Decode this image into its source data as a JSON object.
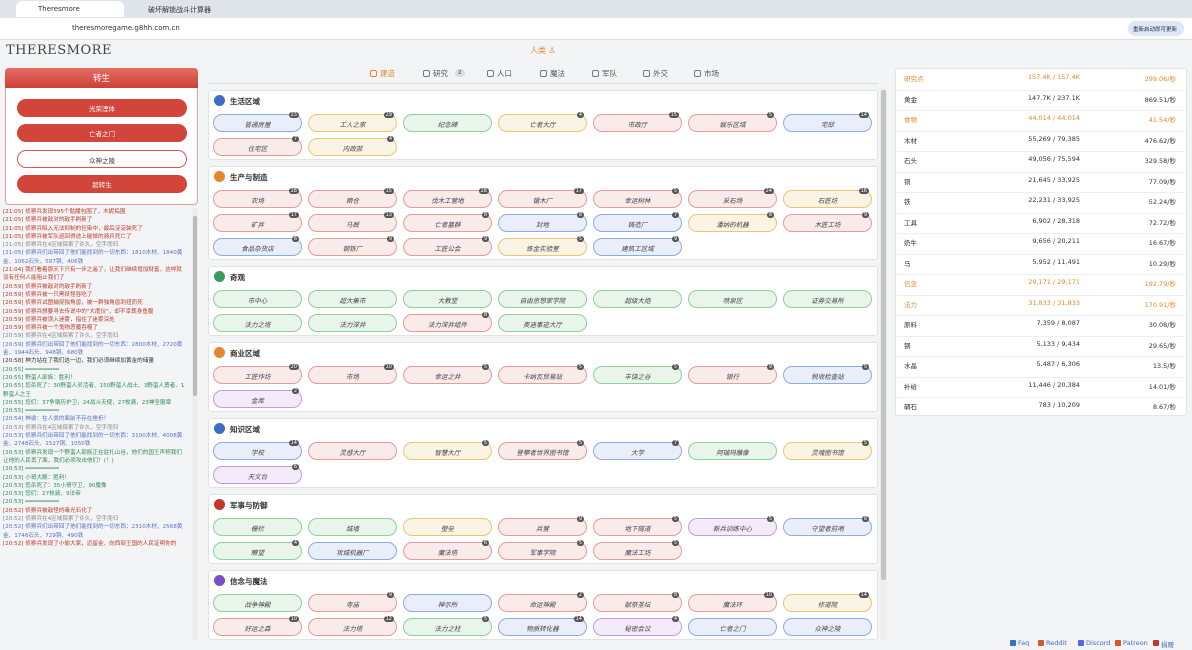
{
  "browser": {
    "tabs": [
      "Theresmore",
      "破坏解锁战斗计算器"
    ],
    "url": "theresmoregame.g8hh.com.cn",
    "update_button": "重新启动即可更新"
  },
  "header": {
    "logo": "THERESMORE",
    "race": "人类 ♙"
  },
  "rebirth": {
    "title": "转生",
    "buttons": [
      {
        "label": "光荣湮体"
      },
      {
        "label": "亡者之门"
      },
      {
        "label": "众神之陵",
        "progress": 16
      },
      {
        "label": "超转生"
      }
    ]
  },
  "log": [
    {
      "text": "[21:05] 侦察兵发现595个骷髅包围了，木妮捣围",
      "color": "#c0392b"
    },
    {
      "text": "[21:05] 侦察兵被敌对的敌手刷新了",
      "color": "#c0392b"
    },
    {
      "text": "[21:05] 侦察兵陷入无法抑制的狂染中，最后淀淀装死了",
      "color": "#c0392b"
    },
    {
      "text": "[21:05] 侦察兵被军队巡回得途上碰掉的骑兵死亡了",
      "color": "#c0392b"
    },
    {
      "text": "[21:05] 侦察兵在4区域探索了许久，空手而归",
      "color": "#888"
    },
    {
      "text": "[21:05] 侦察兵们出带回了他们能找到的一切东西：1810木材、1840黄金、1062石头、597铜、406铁",
      "color": "#5b6fc7"
    },
    {
      "text": "[21:04] 我们看着那天下只有一步之遥了，让我们继续增加财富，这样就没有任何人能阻止我们了",
      "color": "#c0392b"
    },
    {
      "text": "[20:59] 侦察兵被敌对的敌手刷新了",
      "color": "#c0392b"
    },
    {
      "text": "[20:59] 侦察兵被一只黑妖怪吞吃了",
      "color": "#c0392b"
    },
    {
      "text": "[20:59] 侦察兵试图捕捉独角兽，被一群独角兽刺扭而死",
      "color": "#c0392b"
    },
    {
      "text": "[20:59] 侦察兵想要寻去传说中的\"大度仪\"，却不幸葬身鱼腹",
      "color": "#c0392b"
    },
    {
      "text": "[20:59] 侦察兵被误入迷雾，指往了迷雾深处",
      "color": "#c0392b"
    },
    {
      "text": "[20:59] 侦察兵被一个鬼物恶魔吞噬了",
      "color": "#c0392b"
    },
    {
      "text": "[20:59] 侦察兵在4区域探索了许久，空手而归",
      "color": "#888"
    },
    {
      "text": "[20:59] 侦察兵们出带回了他们能找到的一切东西：2800木材、2720黄金、1944石头、948铜、680铁",
      "color": "#5b6fc7"
    },
    {
      "text": "[20:58] 神力站在了我们这一边，我们必须继续加黄金的储量",
      "color": "#333"
    },
    {
      "text": "[20:55] ━━━━━━━━━━",
      "color": "#2e8b57"
    },
    {
      "text": "[20:55] 野蛮人部族：胜利！",
      "color": "#2e8b57"
    },
    {
      "text": "[20:55] 您杀死了：30野蛮人灵活者、150野蛮人战士、3野蛮人勇者、1野蛮人之王",
      "color": "#2e8b57"
    },
    {
      "text": "[20:55] 您们：37争钢历护卫，24战斗天使，27枚骑，23神圣服章",
      "color": "#2e8b57"
    },
    {
      "text": "[20:55] ━━━━━━━━━━",
      "color": "#2e8b57"
    },
    {
      "text": "[20:54] 神谕：在人类的面前不存在挫折！",
      "color": "#5b6fc7"
    },
    {
      "text": "[20:53] 侦察兵在4区域探索了许久，空手而归",
      "color": "#888"
    },
    {
      "text": "[20:53] 侦察兵们出带回了他们能找到的一切东西：3100木材、4008黄金、2748石头、1527铜、1050铁",
      "color": "#5b6fc7"
    },
    {
      "text": "[20:53] 侦察兵发现一个野蛮人部族正在驻扎山谷，他们的国王声称我们让他的人民丢了面，我们必须攻击他们！(！)",
      "color": "#2e8b57"
    },
    {
      "text": "[20:53] ━━━━━━━━━━",
      "color": "#2e8b57"
    },
    {
      "text": "[20:53] 小哥大殿：胜利！",
      "color": "#2e8b57"
    },
    {
      "text": "[20:53] 您杀死了：35小哥守卫、90魔像",
      "color": "#2e8b57"
    },
    {
      "text": "[20:53] 您们：27枚骑，9法帝",
      "color": "#2e8b57"
    },
    {
      "text": "[20:53] ━━━━━━━━━━",
      "color": "#2e8b57"
    },
    {
      "text": "[20:52] 侦察兵被敌怪的毒光石化了",
      "color": "#c0392b"
    },
    {
      "text": "[20:52] 侦察兵在4区域探索了许久，空手而归",
      "color": "#888"
    },
    {
      "text": "[20:52] 侦察兵们出带回了他们能找到的一切东西：2310木材、2568黄金、1746石头、729铜、490铁",
      "color": "#5b6fc7"
    },
    {
      "text": "[20:52] 侦察兵发现了小偷大家，迈留金、向西部王国的人民证明你的",
      "color": "#c0392b"
    }
  ],
  "tabs": [
    {
      "label": "建造"
    },
    {
      "label": "研究",
      "badge": 2
    },
    {
      "label": "人口"
    },
    {
      "label": "魔法"
    },
    {
      "label": "军队"
    },
    {
      "label": "外交"
    },
    {
      "label": "市场"
    }
  ],
  "sections": [
    {
      "title": "生活区域",
      "icon_color": "#3d6fc4",
      "buildings": [
        {
          "name": "普通房屋",
          "count": 23,
          "color": "#8fa8e6"
        },
        {
          "name": "工人之家",
          "count": 29,
          "color": "#e6c777"
        },
        {
          "name": "纪念碑",
          "color": "#8fcf9b"
        },
        {
          "name": "亡者大厅",
          "count": 4,
          "color": "#e6c777"
        },
        {
          "name": "市政厅",
          "count": 15,
          "color": "#e79a9a"
        },
        {
          "name": "娱乐区域",
          "count": 5,
          "color": "#e79a9a"
        },
        {
          "name": "宅邸",
          "count": 14,
          "color": "#8fa8e6"
        },
        {
          "name": "住宅区",
          "count": 7,
          "color": "#e79a9a"
        },
        {
          "name": "内政部",
          "count": 4,
          "color": "#e6c777"
        }
      ]
    },
    {
      "title": "生产与制造",
      "icon_color": "#e0892c",
      "buildings": [
        {
          "name": "农场",
          "count": 28,
          "color": "#e79a9a"
        },
        {
          "name": "粮仓",
          "count": 15,
          "color": "#e79a9a"
        },
        {
          "name": "伐木工营地",
          "count": 28,
          "color": "#e79a9a"
        },
        {
          "name": "锯木厂",
          "count": 17,
          "color": "#e79a9a"
        },
        {
          "name": "幸运树林",
          "count": 5,
          "color": "#e79a9a"
        },
        {
          "name": "采石场",
          "count": 24,
          "color": "#e79a9a"
        },
        {
          "name": "石匠坊",
          "count": 16,
          "color": "#e6c777"
        },
        {
          "name": "矿井",
          "count": 17,
          "color": "#e79a9a"
        },
        {
          "name": "马厩",
          "count": 13,
          "color": "#e79a9a"
        },
        {
          "name": "亡者墓群",
          "count": 8,
          "color": "#e79a9a"
        },
        {
          "name": "封地",
          "count": 8,
          "color": "#8fa8e6"
        },
        {
          "name": "铸造厂",
          "count": 7,
          "color": "#8fa8e6"
        },
        {
          "name": "潘纳的机器",
          "count": 8,
          "color": "#e6c777"
        },
        {
          "name": "木匠工坊",
          "count": 9,
          "color": "#e79a9a"
        },
        {
          "name": "食品杂货店",
          "count": 6,
          "color": "#8fa8e6"
        },
        {
          "name": "钢铁厂",
          "count": 9,
          "color": "#e79a9a"
        },
        {
          "name": "工匠公会",
          "count": 9,
          "color": "#e79a9a"
        },
        {
          "name": "炼金实验室",
          "count": 5,
          "color": "#e6c777"
        },
        {
          "name": "建筑工区域",
          "count": 9,
          "color": "#8fa8e6"
        }
      ]
    },
    {
      "title": "奇观",
      "icon_color": "#3a9a5b",
      "buildings": [
        {
          "name": "市中心",
          "color": "#8fcf9b"
        },
        {
          "name": "超大集市",
          "color": "#8fcf9b"
        },
        {
          "name": "大教堂",
          "color": "#8fcf9b"
        },
        {
          "name": "自由思想家学院",
          "color": "#8fcf9b"
        },
        {
          "name": "超级大炮",
          "color": "#8fcf9b"
        },
        {
          "name": "喷泉区",
          "color": "#8fcf9b"
        },
        {
          "name": "证券交易所",
          "color": "#8fcf9b"
        },
        {
          "name": "法力之塔",
          "color": "#8fcf9b"
        },
        {
          "name": "法力深井",
          "color": "#8fcf9b"
        },
        {
          "name": "法力深井组件",
          "count": 8,
          "color": "#e79a9a"
        },
        {
          "name": "奥迪事迹大厅",
          "color": "#8fcf9b"
        }
      ]
    },
    {
      "title": "商业区域",
      "icon_color": "#e0892c",
      "buildings": [
        {
          "name": "工匠作坊",
          "count": 20,
          "color": "#e79a9a"
        },
        {
          "name": "市场",
          "count": 10,
          "color": "#e79a9a"
        },
        {
          "name": "幸运之井",
          "count": 5,
          "color": "#e79a9a"
        },
        {
          "name": "卡纳瓦贸易站",
          "count": 5,
          "color": "#e79a9a"
        },
        {
          "name": "丰饶之谷",
          "count": 5,
          "color": "#8fcf9b"
        },
        {
          "name": "银行",
          "count": 9,
          "color": "#e79a9a"
        },
        {
          "name": "税收检查站",
          "count": 5,
          "color": "#8fa8e6"
        },
        {
          "name": "金库",
          "count": 2,
          "color": "#c49be0"
        }
      ]
    },
    {
      "title": "知识区域",
      "icon_color": "#3d6fc4",
      "buildings": [
        {
          "name": "学校",
          "count": 14,
          "color": "#8fa8e6"
        },
        {
          "name": "灵感大厅",
          "color": "#e79a9a"
        },
        {
          "name": "智慧大厅",
          "count": 5,
          "color": "#e6c777"
        },
        {
          "name": "登攀者世界图书馆",
          "count": 5,
          "color": "#e79a9a"
        },
        {
          "name": "大学",
          "count": 7,
          "color": "#8fa8e6"
        },
        {
          "name": "阿瑞玛雕像",
          "color": "#8fcf9b"
        },
        {
          "name": "灵魂图书馆",
          "count": 5,
          "color": "#e6c777"
        },
        {
          "name": "天文台",
          "count": 6,
          "color": "#c49be0"
        }
      ]
    },
    {
      "title": "军事与防御",
      "icon_color": "#c0392b",
      "buildings": [
        {
          "name": "栅栏",
          "color": "#8fcf9b"
        },
        {
          "name": "城墙",
          "color": "#8fcf9b"
        },
        {
          "name": "壁垒",
          "color": "#e6c777"
        },
        {
          "name": "兵营",
          "count": 9,
          "color": "#e79a9a"
        },
        {
          "name": "地下隧道",
          "count": 5,
          "color": "#e79a9a"
        },
        {
          "name": "新兵训练中心",
          "count": 5,
          "color": "#c49be0"
        },
        {
          "name": "守望者前哨",
          "count": 8,
          "color": "#8fa8e6"
        },
        {
          "name": "瞭望",
          "count": 4,
          "color": "#8fcf9b"
        },
        {
          "name": "攻城机器厂",
          "color": "#8fa8e6"
        },
        {
          "name": "魔法塔",
          "count": 6,
          "color": "#e79a9a"
        },
        {
          "name": "军事学院",
          "count": 5,
          "color": "#e79a9a"
        },
        {
          "name": "魔法工坊",
          "count": 5,
          "color": "#e79a9a"
        }
      ]
    },
    {
      "title": "信念与魔法",
      "icon_color": "#7a4fc4",
      "buildings": [
        {
          "name": "战争神殿",
          "color": "#8fcf9b"
        },
        {
          "name": "寺庙",
          "count": 9,
          "color": "#e79a9a"
        },
        {
          "name": "神示所",
          "color": "#8fa8e6"
        },
        {
          "name": "命运神殿",
          "count": 2,
          "color": "#e79a9a"
        },
        {
          "name": "献祭圣坛",
          "count": 8,
          "color": "#e79a9a"
        },
        {
          "name": "魔法环",
          "count": 10,
          "color": "#e79a9a"
        },
        {
          "name": "修道院",
          "count": 14,
          "color": "#e6c777"
        },
        {
          "name": "好运之森",
          "count": 10,
          "color": "#e79a9a"
        },
        {
          "name": "法力塔",
          "count": 12,
          "color": "#e79a9a"
        },
        {
          "name": "法力之柱",
          "count": 5,
          "color": "#8fcf9b"
        },
        {
          "name": "物质转化器",
          "count": 14,
          "color": "#8fa8e6"
        },
        {
          "name": "秘密会议",
          "count": 4,
          "color": "#c49be0"
        },
        {
          "name": "亡者之门",
          "color": "#8fa8e6"
        },
        {
          "name": "众神之陵",
          "color": "#8fa8e6"
        }
      ]
    }
  ],
  "resources": [
    {
      "name": "研究点",
      "amount": "157.4K / 157.4K",
      "rate": "299.06/秒",
      "color": "#e0892c"
    },
    {
      "name": "黄金",
      "amount": "147.7K / 237.1K",
      "rate": "869.51/秒",
      "color": "#333"
    },
    {
      "name": "食物",
      "amount": "44,014 / 44,014",
      "rate": "41.54/秒",
      "color": "#e0892c"
    },
    {
      "name": "木材",
      "amount": "55,269 / 79,385",
      "rate": "476.62/秒",
      "color": "#333"
    },
    {
      "name": "石头",
      "amount": "49,056 / 75,594",
      "rate": "329.58/秒",
      "color": "#333"
    },
    {
      "name": "铜",
      "amount": "21,645 / 33,925",
      "rate": "77.09/秒",
      "color": "#333"
    },
    {
      "name": "铁",
      "amount": "22,231 / 33,925",
      "rate": "52.24/秒",
      "color": "#333"
    },
    {
      "name": "工具",
      "amount": "6,902 / 28,318",
      "rate": "72.72/秒",
      "color": "#333"
    },
    {
      "name": "奶牛",
      "amount": "9,656 / 20,211",
      "rate": "16.67/秒",
      "color": "#333"
    },
    {
      "name": "马",
      "amount": "5,952 / 11,491",
      "rate": "10.29/秒",
      "color": "#333"
    },
    {
      "name": "信念",
      "amount": "29,171 / 29,171",
      "rate": "192.79/秒",
      "color": "#e0892c"
    },
    {
      "name": "法力",
      "amount": "31,833 / 31,833",
      "rate": "170.91/秒",
      "color": "#e0892c"
    },
    {
      "name": "原料",
      "amount": "7,359 / 8,087",
      "rate": "30.08/秒",
      "color": "#333"
    },
    {
      "name": "钢",
      "amount": "5,133 / 9,434",
      "rate": "29.65/秒",
      "color": "#333"
    },
    {
      "name": "水晶",
      "amount": "5,487 / 6,306",
      "rate": "13.5/秒",
      "color": "#333"
    },
    {
      "name": "补给",
      "amount": "11,446 / 20,384",
      "rate": "14.01/秒",
      "color": "#333"
    },
    {
      "name": "碉石",
      "amount": "783 / 10,209",
      "rate": "8.67/秒",
      "color": "#333"
    }
  ],
  "footer": [
    "Faq",
    "Reddit",
    "Discord",
    "Patreon",
    "捐赠"
  ]
}
